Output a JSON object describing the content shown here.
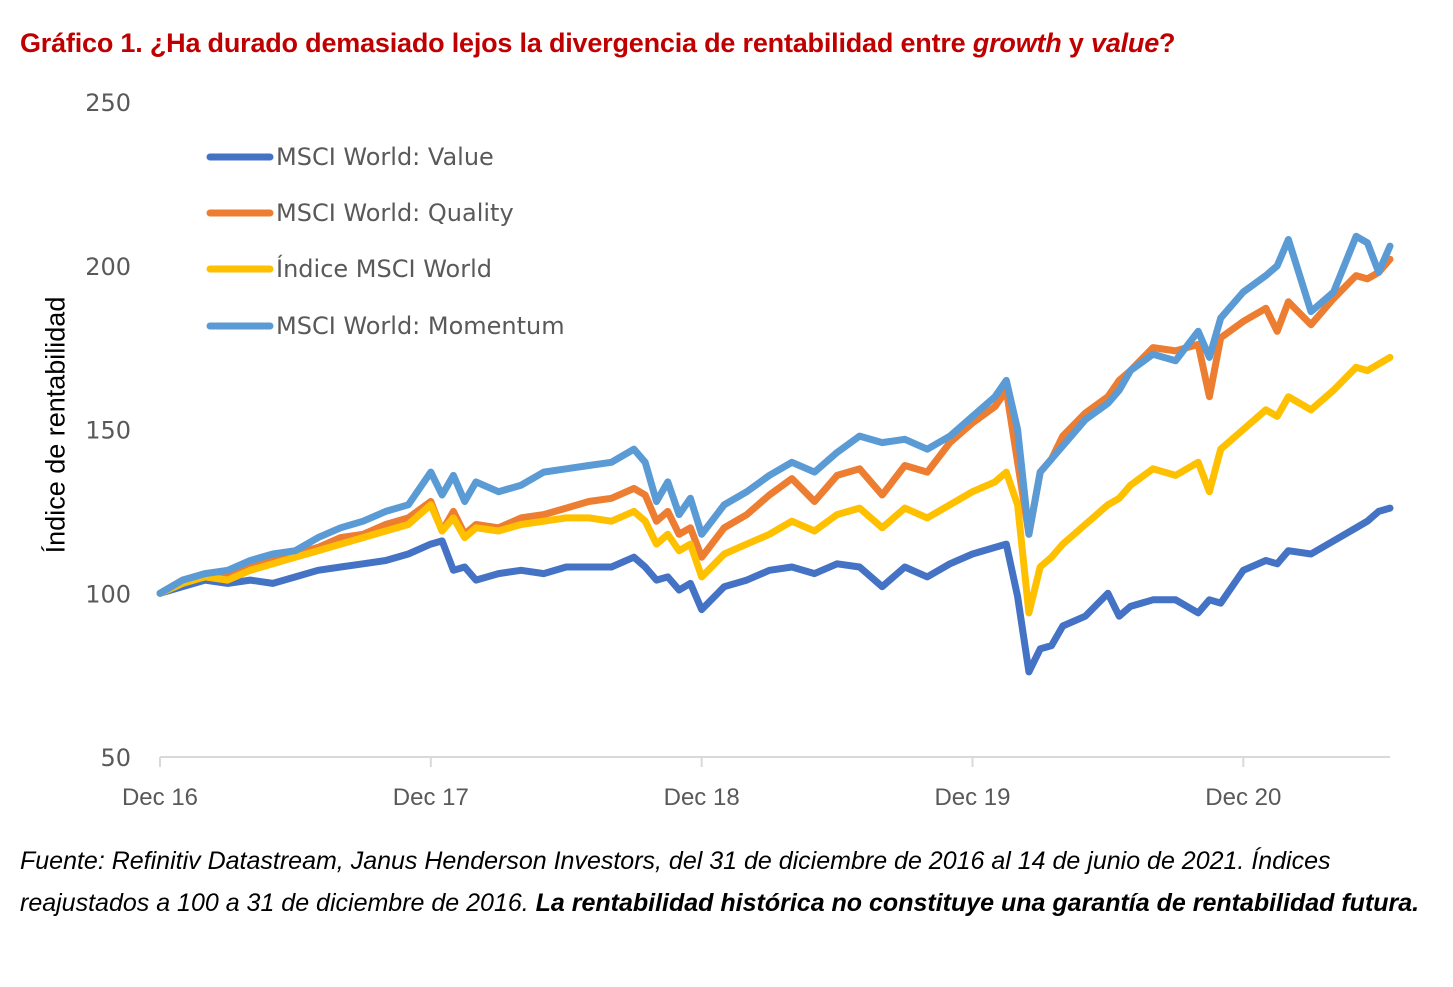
{
  "title": {
    "prefix": "Gráfico 1. ¿Ha durado demasiado lejos la divergencia de rentabilidad entre ",
    "growth": "growth",
    "middle": " y ",
    "value": "value",
    "suffix": "?"
  },
  "footnote": {
    "normal": "Fuente: Refinitiv Datastream, Janus Henderson Investors, del 31 de diciembre de 2016 al 14 de junio de 2021. Índices reajustados a 100 a 31 de diciembre de 2016. ",
    "bold": "La rentabilidad histórica no constituye una garantía de rentabilidad futura."
  },
  "chart_data": {
    "type": "line",
    "title": "Gráfico 1. ¿Ha durado demasiado lejos la divergencia de rentabilidad entre growth y value?",
    "xlabel": "",
    "ylabel": "Índice de rentabilidad",
    "ylim": [
      50,
      250
    ],
    "yticks": [
      50,
      100,
      150,
      200,
      250
    ],
    "x_unit": "months since Dec 2016",
    "xlim": [
      0,
      54.5
    ],
    "xticks": [
      0,
      12,
      24,
      36,
      48
    ],
    "xtick_labels": [
      "Dec 16",
      "Dec 17",
      "Dec 18",
      "Dec 19",
      "Dec 20"
    ],
    "grid": false,
    "legend_position": "top-left",
    "series": [
      {
        "name": "MSCI World: Value",
        "color": "#4472c4",
        "x": [
          0,
          1,
          2,
          3,
          4,
          5,
          6,
          7,
          8,
          9,
          10,
          11,
          12,
          12.5,
          13,
          13.5,
          14,
          15,
          16,
          17,
          18,
          19,
          20,
          21,
          21.5,
          22,
          22.5,
          23,
          23.5,
          24,
          25,
          26,
          27,
          28,
          29,
          30,
          31,
          32,
          33,
          34,
          35,
          36,
          37,
          37.5,
          38,
          38.5,
          39,
          39.5,
          40,
          41,
          42,
          42.5,
          43,
          44,
          45,
          46,
          46.5,
          47,
          48,
          49,
          49.5,
          50,
          51,
          52,
          53,
          53.5,
          54,
          54.5
        ],
        "values": [
          100,
          102,
          104,
          103,
          104,
          103,
          105,
          107,
          108,
          109,
          110,
          112,
          115,
          116,
          107,
          108,
          104,
          106,
          107,
          106,
          108,
          108,
          108,
          111,
          108,
          104,
          105,
          101,
          103,
          95,
          102,
          104,
          107,
          108,
          106,
          109,
          108,
          102,
          108,
          105,
          109,
          112,
          114,
          115,
          99,
          76,
          83,
          84,
          90,
          93,
          100,
          93,
          96,
          98,
          98,
          94,
          98,
          97,
          107,
          110,
          109,
          113,
          112,
          116,
          120,
          122,
          125,
          126
        ]
      },
      {
        "name": "MSCI World: Quality",
        "color": "#ed7d31",
        "x": [
          0,
          1,
          2,
          3,
          4,
          5,
          6,
          7,
          8,
          9,
          10,
          11,
          12,
          12.5,
          13,
          13.5,
          14,
          15,
          16,
          17,
          18,
          19,
          20,
          21,
          21.5,
          22,
          22.5,
          23,
          23.5,
          24,
          25,
          26,
          27,
          28,
          29,
          30,
          31,
          32,
          33,
          34,
          35,
          36,
          37,
          37.5,
          38,
          38.5,
          39,
          39.5,
          40,
          41,
          42,
          42.5,
          43,
          44,
          45,
          46,
          46.5,
          47,
          48,
          49,
          49.5,
          50,
          51,
          52,
          53,
          53.5,
          54,
          54.5
        ],
        "values": [
          100,
          104,
          106,
          105,
          108,
          110,
          112,
          114,
          117,
          118,
          121,
          123,
          128,
          119,
          125,
          118,
          121,
          120,
          123,
          124,
          126,
          128,
          129,
          132,
          130,
          122,
          125,
          118,
          120,
          111,
          120,
          124,
          130,
          135,
          128,
          136,
          138,
          130,
          139,
          137,
          146,
          152,
          157,
          162,
          140,
          118,
          137,
          141,
          148,
          155,
          160,
          165,
          168,
          175,
          174,
          176,
          160,
          178,
          183,
          187,
          180,
          189,
          182,
          190,
          197,
          196,
          198,
          202
        ]
      },
      {
        "name": "Índice MSCI World",
        "color": "#ffc000",
        "x": [
          0,
          1,
          2,
          3,
          4,
          5,
          6,
          7,
          8,
          9,
          10,
          11,
          12,
          12.5,
          13,
          13.5,
          14,
          15,
          16,
          17,
          18,
          19,
          20,
          21,
          21.5,
          22,
          22.5,
          23,
          23.5,
          24,
          25,
          26,
          27,
          28,
          29,
          30,
          31,
          32,
          33,
          34,
          35,
          36,
          37,
          37.5,
          38,
          38.5,
          39,
          39.5,
          40,
          41,
          42,
          42.5,
          43,
          44,
          45,
          46,
          46.5,
          47,
          48,
          49,
          49.5,
          50,
          51,
          52,
          53,
          53.5,
          54,
          54.5
        ],
        "values": [
          100,
          103,
          105,
          104,
          107,
          109,
          111,
          113,
          115,
          117,
          119,
          121,
          127,
          119,
          123,
          117,
          120,
          119,
          121,
          122,
          123,
          123,
          122,
          125,
          122,
          115,
          118,
          113,
          115,
          105,
          112,
          115,
          118,
          122,
          119,
          124,
          126,
          120,
          126,
          123,
          127,
          131,
          134,
          137,
          127,
          94,
          108,
          111,
          115,
          121,
          127,
          129,
          133,
          138,
          136,
          140,
          131,
          144,
          150,
          156,
          154,
          160,
          156,
          162,
          169,
          168,
          170,
          172
        ]
      },
      {
        "name": "MSCI World: Momentum",
        "color": "#5b9bd5",
        "x": [
          0,
          1,
          2,
          3,
          4,
          5,
          6,
          7,
          8,
          9,
          10,
          11,
          12,
          12.5,
          13,
          13.5,
          14,
          15,
          16,
          17,
          18,
          19,
          20,
          21,
          21.5,
          22,
          22.5,
          23,
          23.5,
          24,
          25,
          26,
          27,
          28,
          29,
          30,
          31,
          32,
          33,
          34,
          35,
          36,
          37,
          37.5,
          38,
          38.5,
          39,
          39.5,
          40,
          41,
          42,
          42.5,
          43,
          44,
          45,
          46,
          46.5,
          47,
          48,
          49,
          49.5,
          50,
          51,
          52,
          53,
          53.5,
          54,
          54.5
        ],
        "values": [
          100,
          104,
          106,
          107,
          110,
          112,
          113,
          117,
          120,
          122,
          125,
          127,
          137,
          130,
          136,
          128,
          134,
          131,
          133,
          137,
          138,
          139,
          140,
          144,
          140,
          128,
          134,
          124,
          129,
          118,
          127,
          131,
          136,
          140,
          137,
          143,
          148,
          146,
          147,
          144,
          148,
          154,
          160,
          165,
          150,
          118,
          137,
          141,
          145,
          153,
          158,
          162,
          168,
          173,
          171,
          180,
          172,
          184,
          192,
          197,
          200,
          208,
          186,
          192,
          209,
          207,
          198,
          206
        ]
      }
    ]
  }
}
